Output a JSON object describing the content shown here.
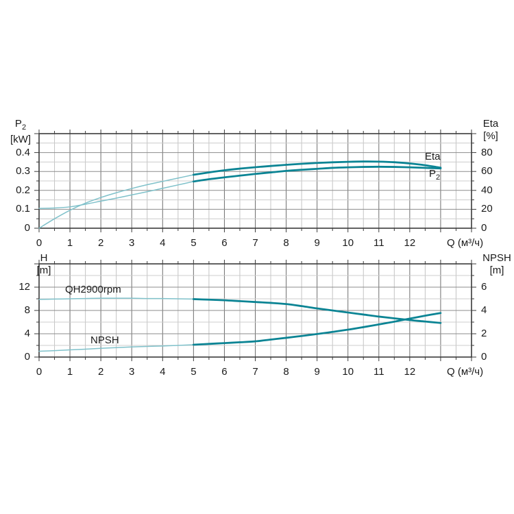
{
  "colors": {
    "curve_bold": "#0b8494",
    "curve_thin": "#7fc1ca",
    "grid_major_v": "#6e6e6e",
    "grid_minor_v": "#c4c4c4",
    "grid_major_h": "#8b8b8b",
    "grid_minor_h": "#cccccc",
    "frame": "#3a3a3a",
    "text": "#1a1a1a"
  },
  "chart_data": [
    {
      "type": "line",
      "title": "Power and efficiency curves",
      "x_axis": {
        "label": "Q (м³/ч)",
        "range": [
          0,
          14
        ],
        "minor_step": 0.5,
        "major_step": 1,
        "tick_labels": [
          0,
          1,
          2,
          3,
          4,
          5,
          6,
          7,
          8,
          9,
          10,
          11,
          12
        ]
      },
      "left_axis": {
        "label_main": "P",
        "label_sub": "2",
        "unit": "[kW]",
        "range": [
          0,
          0.5
        ],
        "minor_step": 0.05,
        "major_step": 0.1,
        "tick_labels": [
          0,
          0.1,
          0.2,
          0.3,
          0.4
        ]
      },
      "right_axis": {
        "label": "Eta",
        "unit": "[%]",
        "range": [
          0,
          100
        ],
        "tick_labels": [
          0,
          20,
          40,
          60,
          80
        ]
      },
      "grid": true,
      "legend_position": "curve-end-labels",
      "series": [
        {
          "name": "Eta",
          "label": "Eta",
          "axis": "right",
          "bold_from": 5,
          "x": [
            0,
            0.5,
            1,
            1.5,
            2,
            2.5,
            3,
            3.5,
            4,
            4.5,
            5,
            5.5,
            6,
            6.5,
            7,
            7.5,
            8,
            8.5,
            9,
            9.5,
            10,
            10.5,
            11,
            11.5,
            12,
            12.5,
            13
          ],
          "values": [
            0,
            10,
            19,
            26.5,
            32.5,
            37.5,
            42,
            46,
            49.5,
            53,
            56.5,
            59,
            61.2,
            63,
            64.5,
            65.8,
            67,
            68.1,
            69,
            69.7,
            70.2,
            70.5,
            70.4,
            69.8,
            68.5,
            66.6,
            64
          ]
        },
        {
          "name": "P2",
          "label_main": "P",
          "label_sub": "2",
          "axis": "left",
          "bold_from": 5,
          "x": [
            0,
            0.5,
            1,
            1.5,
            2,
            2.5,
            3,
            3.5,
            4,
            4.5,
            5,
            5.5,
            6,
            6.5,
            7,
            7.5,
            8,
            8.5,
            9,
            9.5,
            10,
            10.5,
            11,
            11.5,
            12,
            12.5,
            13
          ],
          "values": [
            0.105,
            0.107,
            0.113,
            0.127,
            0.143,
            0.159,
            0.176,
            0.193,
            0.211,
            0.229,
            0.247,
            0.259,
            0.269,
            0.278,
            0.287,
            0.295,
            0.303,
            0.309,
            0.314,
            0.319,
            0.322,
            0.324,
            0.325,
            0.324,
            0.322,
            0.319,
            0.316
          ]
        }
      ]
    },
    {
      "type": "line",
      "title": "Head and NPSH curves",
      "x_axis": {
        "label": "Q (м³/ч)",
        "range": [
          0,
          14
        ],
        "minor_step": 0.5,
        "major_step": 1,
        "tick_labels": [
          0,
          1,
          2,
          3,
          4,
          5,
          6,
          7,
          8,
          9,
          10,
          11,
          12
        ]
      },
      "left_axis": {
        "label": "H",
        "unit": "[m]",
        "range": [
          0,
          16
        ],
        "minor_step": 2,
        "major_step": 4,
        "tick_labels": [
          0,
          4,
          8,
          12
        ]
      },
      "right_axis": {
        "label": "NPSH",
        "unit": "[m]",
        "range": [
          0,
          8
        ],
        "tick_labels": [
          0,
          2,
          4,
          6
        ]
      },
      "grid": true,
      "legend_position": "inline-curve-labels",
      "series": [
        {
          "name": "QH",
          "label": "QH2900rpm",
          "axis": "left",
          "bold_from": 5,
          "x": [
            0,
            0.5,
            1,
            1.5,
            2,
            2.5,
            3,
            3.5,
            4,
            4.5,
            5,
            5.5,
            6,
            6.5,
            7,
            7.5,
            8,
            8.5,
            9,
            9.5,
            10,
            10.5,
            11,
            11.5,
            12,
            12.5,
            13
          ],
          "values": [
            9.9,
            9.95,
            10,
            10.05,
            10.1,
            10.1,
            10.1,
            10.05,
            10.05,
            10,
            9.95,
            9.85,
            9.75,
            9.6,
            9.45,
            9.3,
            9.1,
            8.75,
            8.35,
            8,
            7.65,
            7.3,
            6.95,
            6.65,
            6.35,
            6.1,
            5.85
          ]
        },
        {
          "name": "NPSH",
          "label": "NPSH",
          "axis": "right",
          "bold_from": 5,
          "x": [
            0,
            0.5,
            1,
            1.5,
            2,
            2.5,
            3,
            3.5,
            4,
            4.5,
            5,
            5.5,
            6,
            6.5,
            7,
            7.5,
            8,
            8.5,
            9,
            9.5,
            10,
            10.5,
            11,
            11.5,
            12,
            12.5,
            13
          ],
          "values": [
            0.5,
            0.55,
            0.62,
            0.68,
            0.75,
            0.81,
            0.87,
            0.91,
            0.95,
            1,
            1.06,
            1.13,
            1.2,
            1.27,
            1.35,
            1.5,
            1.65,
            1.81,
            1.98,
            2.16,
            2.35,
            2.57,
            2.8,
            3.04,
            3.3,
            3.55,
            3.78
          ]
        }
      ]
    }
  ]
}
